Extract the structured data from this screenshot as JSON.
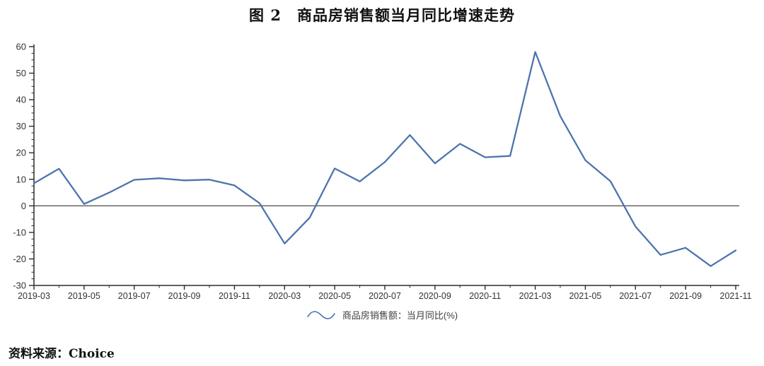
{
  "title": "图 2　商品房销售额当月同比增速走势",
  "source": "资料来源：Choice",
  "chart_data": {
    "type": "line",
    "title": "图 2　商品房销售额当月同比增速走势",
    "legend": "商品房销售额：当月同比(%)",
    "legend_position": "bottom-center",
    "grid": false,
    "ylim": [
      -30,
      60
    ],
    "y_major_step": 10,
    "y_minor_step": 2.5,
    "y_tick_labels": [
      "60",
      "50",
      "40",
      "30",
      "20",
      "10",
      "0",
      "-10",
      "-20",
      "-30"
    ],
    "x_tick_labels": [
      "2019-03",
      "2019-05",
      "2019-07",
      "2019-09",
      "2019-11",
      "2020-03",
      "2020-05",
      "2020-07",
      "2020-09",
      "2020-11",
      "2021-03",
      "2021-05",
      "2021-07",
      "2021-09",
      "2021-11"
    ],
    "categories": [
      "2019-03",
      "2019-04",
      "2019-05",
      "2019-06",
      "2019-07",
      "2019-08",
      "2019-09",
      "2019-10",
      "2019-11",
      "2019-12",
      "2020-03",
      "2020-04",
      "2020-05",
      "2020-06",
      "2020-07",
      "2020-08",
      "2020-09",
      "2020-10",
      "2020-11",
      "2020-12",
      "2021-03",
      "2021-04",
      "2021-05",
      "2021-06",
      "2021-07",
      "2021-08",
      "2021-09",
      "2021-10",
      "2021-11"
    ],
    "series": [
      {
        "name": "商品房销售额：当月同比(%)",
        "values": [
          8.5,
          14,
          0.7,
          5,
          9.8,
          10.4,
          9.6,
          9.9,
          7.7,
          1,
          -14.2,
          -4.5,
          14.1,
          9.2,
          16.5,
          26.7,
          16,
          23.4,
          18.3,
          18.8,
          58,
          33.8,
          17.2,
          9.3,
          -7.8,
          -18.5,
          -15.8,
          -22.7,
          -16.8
        ]
      }
    ],
    "colors": {
      "line": "#4d74ae",
      "axis": "#2b2b2b",
      "zero_line": "#595959",
      "tick_label": "#333333"
    }
  }
}
